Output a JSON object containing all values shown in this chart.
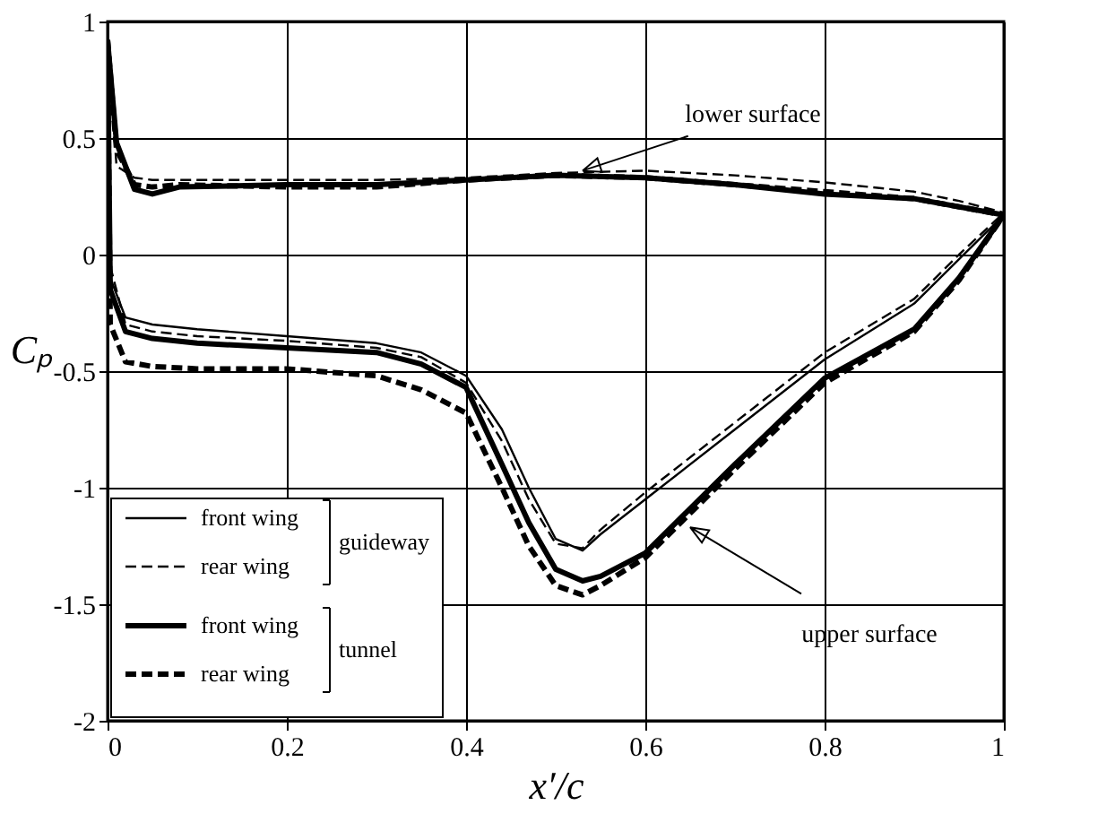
{
  "chart_data": {
    "type": "line",
    "xlabel": "x′/c",
    "ylabel": "Cₚ",
    "xlim": [
      0,
      1
    ],
    "xticks": [
      0,
      0.2,
      0.4,
      0.6,
      0.8,
      1
    ],
    "ylim": [
      -2,
      1
    ],
    "yticks": [
      -2,
      -1.5,
      -1,
      -0.5,
      0,
      0.5,
      1
    ],
    "grid": true,
    "legend": "bottom left",
    "annotations": [
      "guideway",
      "tunnel",
      {
        "text": "lower surface",
        "x": 0.53,
        "y": 0.36
      },
      {
        "text": "upper surface",
        "x": 0.65,
        "y": -1.17
      }
    ],
    "series": [
      {
        "name": "front wing",
        "color": "#000000",
        "line_style": "solid",
        "x": [
          0,
          0.003,
          0.02,
          0.05,
          0.1,
          0.2,
          0.3,
          0.35,
          0.4,
          0.44,
          0.47,
          0.5,
          0.53,
          0.55,
          0.6,
          0.7,
          0.8,
          0.9,
          0.95,
          1
        ],
        "values": [
          0.92,
          -0.1,
          -0.27,
          -0.3,
          -0.32,
          -0.35,
          -0.38,
          -0.42,
          -0.52,
          -0.75,
          -1.0,
          -1.22,
          -1.27,
          -1.2,
          -1.05,
          -0.75,
          -0.45,
          -0.21,
          -0.02,
          0.17
        ]
      },
      {
        "name": "rear wing",
        "color": "#000000",
        "line_style": "dashed",
        "x": [
          0,
          0.003,
          0.02,
          0.05,
          0.1,
          0.2,
          0.3,
          0.35,
          0.4,
          0.44,
          0.47,
          0.5,
          0.53,
          0.55,
          0.6,
          0.7,
          0.8,
          0.9,
          0.95,
          1
        ],
        "values": [
          0.92,
          -0.05,
          -0.3,
          -0.33,
          -0.35,
          -0.37,
          -0.4,
          -0.44,
          -0.55,
          -0.8,
          -1.05,
          -1.24,
          -1.26,
          -1.18,
          -1.02,
          -0.72,
          -0.42,
          -0.19,
          0.0,
          0.18
        ]
      },
      {
        "name": "front wing",
        "color": "#000000",
        "line_style": "solid",
        "x": [
          0,
          0.003,
          0.02,
          0.05,
          0.1,
          0.2,
          0.3,
          0.35,
          0.4,
          0.44,
          0.47,
          0.5,
          0.53,
          0.55,
          0.6,
          0.7,
          0.8,
          0.9,
          0.95,
          1
        ],
        "values": [
          0.92,
          -0.15,
          -0.33,
          -0.36,
          -0.38,
          -0.4,
          -0.42,
          -0.47,
          -0.57,
          -0.9,
          -1.15,
          -1.35,
          -1.4,
          -1.38,
          -1.28,
          -0.9,
          -0.53,
          -0.32,
          -0.1,
          0.17
        ]
      },
      {
        "name": "rear wing",
        "color": "#000000",
        "line_style": "dashed",
        "x": [
          0,
          0.003,
          0.02,
          0.05,
          0.1,
          0.2,
          0.3,
          0.35,
          0.4,
          0.44,
          0.47,
          0.5,
          0.53,
          0.55,
          0.6,
          0.7,
          0.8,
          0.9,
          0.95,
          1
        ],
        "values": [
          0.92,
          -0.3,
          -0.46,
          -0.48,
          -0.49,
          -0.49,
          -0.52,
          -0.58,
          -0.68,
          -1.0,
          -1.25,
          -1.42,
          -1.46,
          -1.42,
          -1.3,
          -0.92,
          -0.55,
          -0.33,
          -0.11,
          0.17
        ]
      },
      {
        "color": "#000000",
        "line_style": "dashed",
        "x": [
          0,
          0.01,
          0.03,
          0.05,
          0.08,
          0.2,
          0.3,
          0.4,
          0.5,
          0.6,
          0.7,
          0.8,
          0.9,
          0.95,
          1
        ],
        "values": [
          0.92,
          0.38,
          0.33,
          0.32,
          0.32,
          0.32,
          0.32,
          0.33,
          0.35,
          0.36,
          0.34,
          0.31,
          0.27,
          0.23,
          0.18
        ]
      },
      {
        "color": "#000000",
        "line_style": "solid",
        "x": [
          0,
          0.01,
          0.03,
          0.05,
          0.08,
          0.2,
          0.3,
          0.4,
          0.5,
          0.6,
          0.7,
          0.8,
          0.9,
          1
        ],
        "values": [
          0.92,
          0.48,
          0.28,
          0.26,
          0.29,
          0.3,
          0.3,
          0.32,
          0.34,
          0.33,
          0.3,
          0.26,
          0.24,
          0.17
        ]
      },
      {
        "color": "#000000",
        "line_style": "dashed",
        "x": [
          0,
          0.01,
          0.03,
          0.05,
          0.08,
          0.2,
          0.3,
          0.4,
          0.5,
          0.6,
          0.7,
          0.8,
          0.9,
          1
        ],
        "values": [
          0.92,
          0.45,
          0.3,
          0.29,
          0.3,
          0.29,
          0.29,
          0.32,
          0.34,
          0.33,
          0.3,
          0.27,
          0.24,
          0.17
        ]
      }
    ]
  }
}
